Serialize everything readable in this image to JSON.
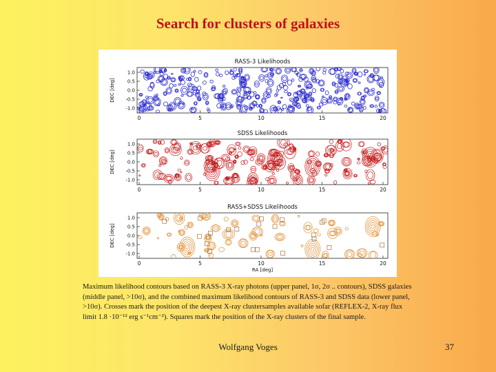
{
  "slide": {
    "title": "Search for clusters of galaxies",
    "footer_author": "Wolfgang Voges",
    "page_number": "37"
  },
  "figure": {
    "panels": [
      {
        "title": "RASS-3 Likelihoods",
        "ylabel": "DEC [deg]",
        "color": "#2a2acc",
        "xlabel": ""
      },
      {
        "title": "SDSS Likelihoods",
        "ylabel": "DEC [deg]",
        "color": "#c41818",
        "xlabel": ""
      },
      {
        "title": "RASS+SDSS Likelihoods",
        "ylabel": "DEC [deg]",
        "color": "#e08a2a",
        "xlabel": "RA [deg]"
      }
    ],
    "y_ticks": [
      "1.0",
      "0.5",
      "0.0",
      "-0.5",
      "-1.0"
    ],
    "x_ticks": [
      "0",
      "5",
      "10",
      "15",
      "20"
    ]
  },
  "caption": {
    "line1": "Maximum likelihood contours based on RASS-3 X-ray photons (upper panel, 1σ, 2σ .. contours), SDSS galaxies",
    "line2": "(middle panel, >10σ), and the combined maximum likelihood contours of RASS-3 and SDSS data (lower panel,",
    "line3": ">10σ). Crosses mark the position of the deepest X-ray clustersamples available sofar (REFLEX-2, X-ray flux",
    "line4": "limit 1.8 ·10⁻¹² erg s⁻¹cm⁻²). Squares mark the position of the X-ray clusters of the final sample."
  }
}
